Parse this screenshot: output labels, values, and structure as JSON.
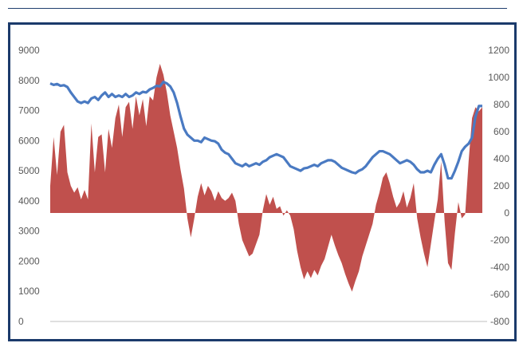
{
  "chart_data": {
    "type": "line+area",
    "title": "",
    "left_axis": {
      "ticks": [
        "9000",
        "8000",
        "7000",
        "6000",
        "5000",
        "4000",
        "3000",
        "2000",
        "1000",
        "0"
      ],
      "min": 0,
      "max": 9000
    },
    "right_axis": {
      "ticks": [
        "1200",
        "1000",
        "800",
        "600",
        "400",
        "200",
        "0",
        "-200",
        "-400",
        "-600",
        "-800"
      ],
      "min": -800,
      "max": 1200
    },
    "grid": false,
    "legend": "none",
    "series": [
      {
        "type": "area",
        "axis": "right",
        "color": "#c0504d",
        "points": [
          [
            0,
            200
          ],
          [
            1,
            560
          ],
          [
            2,
            280
          ],
          [
            3,
            600
          ],
          [
            4,
            650
          ],
          [
            5,
            300
          ],
          [
            6,
            200
          ],
          [
            7,
            150
          ],
          [
            8,
            190
          ],
          [
            9,
            100
          ],
          [
            10,
            170
          ],
          [
            11,
            100
          ],
          [
            12,
            660
          ],
          [
            13,
            300
          ],
          [
            14,
            560
          ],
          [
            15,
            580
          ],
          [
            16,
            300
          ],
          [
            17,
            620
          ],
          [
            18,
            480
          ],
          [
            19,
            700
          ],
          [
            20,
            800
          ],
          [
            21,
            560
          ],
          [
            22,
            780
          ],
          [
            23,
            820
          ],
          [
            24,
            620
          ],
          [
            25,
            860
          ],
          [
            26,
            720
          ],
          [
            27,
            840
          ],
          [
            28,
            640
          ],
          [
            29,
            860
          ],
          [
            30,
            830
          ],
          [
            31,
            1000
          ],
          [
            32,
            1100
          ],
          [
            33,
            1020
          ],
          [
            34,
            890
          ],
          [
            35,
            720
          ],
          [
            36,
            600
          ],
          [
            37,
            480
          ],
          [
            38,
            320
          ],
          [
            39,
            180
          ],
          [
            40,
            -40
          ],
          [
            41,
            -180
          ],
          [
            42,
            -40
          ],
          [
            43,
            120
          ],
          [
            44,
            220
          ],
          [
            45,
            130
          ],
          [
            46,
            200
          ],
          [
            47,
            160
          ],
          [
            48,
            90
          ],
          [
            49,
            160
          ],
          [
            50,
            110
          ],
          [
            51,
            90
          ],
          [
            52,
            110
          ],
          [
            53,
            150
          ],
          [
            54,
            90
          ],
          [
            55,
            -80
          ],
          [
            56,
            -200
          ],
          [
            57,
            -260
          ],
          [
            58,
            -320
          ],
          [
            59,
            -300
          ],
          [
            60,
            -230
          ],
          [
            61,
            -160
          ],
          [
            62,
            20
          ],
          [
            63,
            140
          ],
          [
            64,
            60
          ],
          [
            65,
            120
          ],
          [
            66,
            30
          ],
          [
            67,
            50
          ],
          [
            68,
            -20
          ],
          [
            69,
            20
          ],
          [
            70,
            -20
          ],
          [
            71,
            -120
          ],
          [
            72,
            -280
          ],
          [
            73,
            -400
          ],
          [
            74,
            -490
          ],
          [
            75,
            -430
          ],
          [
            76,
            -480
          ],
          [
            77,
            -420
          ],
          [
            78,
            -460
          ],
          [
            79,
            -390
          ],
          [
            80,
            -340
          ],
          [
            81,
            -250
          ],
          [
            82,
            -160
          ],
          [
            83,
            -240
          ],
          [
            84,
            -310
          ],
          [
            85,
            -370
          ],
          [
            86,
            -450
          ],
          [
            87,
            -520
          ],
          [
            88,
            -580
          ],
          [
            89,
            -500
          ],
          [
            90,
            -430
          ],
          [
            91,
            -320
          ],
          [
            92,
            -240
          ],
          [
            93,
            -160
          ],
          [
            94,
            -80
          ],
          [
            95,
            60
          ],
          [
            96,
            150
          ],
          [
            97,
            260
          ],
          [
            98,
            300
          ],
          [
            99,
            220
          ],
          [
            100,
            120
          ],
          [
            101,
            40
          ],
          [
            102,
            80
          ],
          [
            103,
            160
          ],
          [
            104,
            40
          ],
          [
            105,
            110
          ],
          [
            106,
            220
          ],
          [
            107,
            -40
          ],
          [
            108,
            -180
          ],
          [
            109,
            -300
          ],
          [
            110,
            -400
          ],
          [
            111,
            -230
          ],
          [
            112,
            -60
          ],
          [
            113,
            100
          ],
          [
            114,
            380
          ],
          [
            115,
            -60
          ],
          [
            116,
            -370
          ],
          [
            117,
            -420
          ],
          [
            118,
            -150
          ],
          [
            119,
            80
          ],
          [
            120,
            -40
          ],
          [
            121,
            -10
          ],
          [
            122,
            380
          ],
          [
            123,
            700
          ],
          [
            124,
            780
          ],
          [
            125,
            750
          ],
          [
            126,
            780
          ]
        ]
      },
      {
        "type": "line",
        "axis": "left",
        "color": "#4a7ac2",
        "points": [
          [
            0,
            7900
          ],
          [
            1,
            7850
          ],
          [
            2,
            7880
          ],
          [
            3,
            7820
          ],
          [
            4,
            7840
          ],
          [
            5,
            7780
          ],
          [
            6,
            7600
          ],
          [
            7,
            7450
          ],
          [
            8,
            7300
          ],
          [
            9,
            7250
          ],
          [
            10,
            7300
          ],
          [
            11,
            7250
          ],
          [
            12,
            7400
          ],
          [
            13,
            7450
          ],
          [
            14,
            7350
          ],
          [
            15,
            7500
          ],
          [
            16,
            7600
          ],
          [
            17,
            7450
          ],
          [
            18,
            7550
          ],
          [
            19,
            7450
          ],
          [
            20,
            7500
          ],
          [
            21,
            7450
          ],
          [
            22,
            7550
          ],
          [
            23,
            7450
          ],
          [
            24,
            7500
          ],
          [
            25,
            7600
          ],
          [
            26,
            7550
          ],
          [
            27,
            7620
          ],
          [
            28,
            7600
          ],
          [
            29,
            7700
          ],
          [
            30,
            7750
          ],
          [
            31,
            7820
          ],
          [
            32,
            7800
          ],
          [
            33,
            7950
          ],
          [
            34,
            7900
          ],
          [
            35,
            7800
          ],
          [
            36,
            7600
          ],
          [
            37,
            7250
          ],
          [
            38,
            6800
          ],
          [
            39,
            6400
          ],
          [
            40,
            6200
          ],
          [
            41,
            6100
          ],
          [
            42,
            6000
          ],
          [
            43,
            6000
          ],
          [
            44,
            5950
          ],
          [
            45,
            6100
          ],
          [
            46,
            6050
          ],
          [
            47,
            6000
          ],
          [
            48,
            5980
          ],
          [
            49,
            5900
          ],
          [
            50,
            5700
          ],
          [
            51,
            5600
          ],
          [
            52,
            5550
          ],
          [
            53,
            5400
          ],
          [
            54,
            5250
          ],
          [
            55,
            5200
          ],
          [
            56,
            5150
          ],
          [
            57,
            5230
          ],
          [
            58,
            5150
          ],
          [
            59,
            5200
          ],
          [
            60,
            5250
          ],
          [
            61,
            5200
          ],
          [
            62,
            5300
          ],
          [
            63,
            5350
          ],
          [
            64,
            5450
          ],
          [
            65,
            5500
          ],
          [
            66,
            5550
          ],
          [
            67,
            5500
          ],
          [
            68,
            5450
          ],
          [
            69,
            5300
          ],
          [
            70,
            5150
          ],
          [
            71,
            5100
          ],
          [
            72,
            5050
          ],
          [
            73,
            5000
          ],
          [
            74,
            5080
          ],
          [
            75,
            5100
          ],
          [
            76,
            5150
          ],
          [
            77,
            5200
          ],
          [
            78,
            5150
          ],
          [
            79,
            5250
          ],
          [
            80,
            5300
          ],
          [
            81,
            5350
          ],
          [
            82,
            5350
          ],
          [
            83,
            5300
          ],
          [
            84,
            5200
          ],
          [
            85,
            5100
          ],
          [
            86,
            5050
          ],
          [
            87,
            5000
          ],
          [
            88,
            4950
          ],
          [
            89,
            4920
          ],
          [
            90,
            5000
          ],
          [
            91,
            5050
          ],
          [
            92,
            5150
          ],
          [
            93,
            5300
          ],
          [
            94,
            5450
          ],
          [
            95,
            5550
          ],
          [
            96,
            5650
          ],
          [
            97,
            5650
          ],
          [
            98,
            5600
          ],
          [
            99,
            5550
          ],
          [
            100,
            5450
          ],
          [
            101,
            5350
          ],
          [
            102,
            5250
          ],
          [
            103,
            5300
          ],
          [
            104,
            5350
          ],
          [
            105,
            5300
          ],
          [
            106,
            5200
          ],
          [
            107,
            5050
          ],
          [
            108,
            4950
          ],
          [
            109,
            4950
          ],
          [
            110,
            5000
          ],
          [
            111,
            4950
          ],
          [
            112,
            5200
          ],
          [
            113,
            5400
          ],
          [
            114,
            5550
          ],
          [
            115,
            5200
          ],
          [
            116,
            4750
          ],
          [
            117,
            4750
          ],
          [
            118,
            5000
          ],
          [
            119,
            5300
          ],
          [
            120,
            5650
          ],
          [
            121,
            5800
          ],
          [
            122,
            5900
          ],
          [
            123,
            6100
          ],
          [
            124,
            6800
          ],
          [
            125,
            7150
          ],
          [
            126,
            7150
          ]
        ]
      }
    ]
  }
}
